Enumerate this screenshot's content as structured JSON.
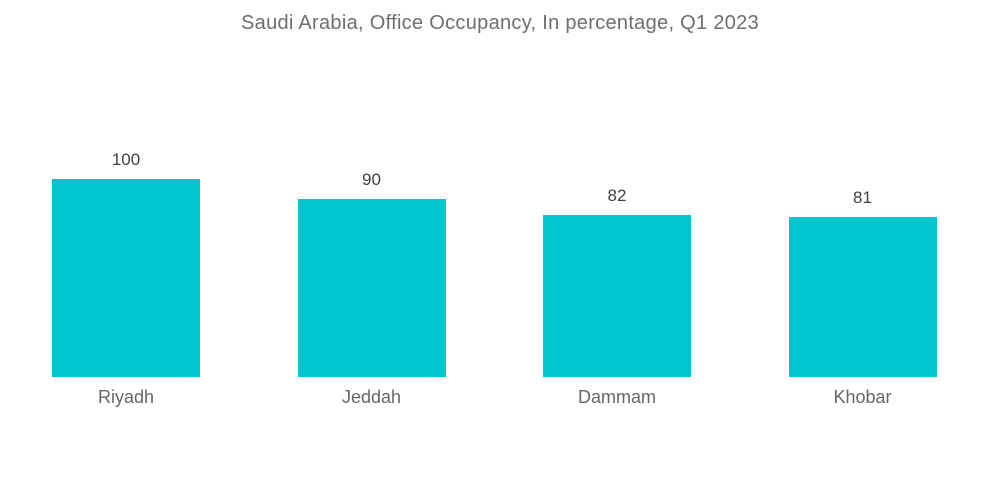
{
  "title": "Saudi Arabia, Office Occupancy, In percentage, Q1 2023",
  "colors": {
    "background": "#FFFFFF",
    "bar": "#00C7CF",
    "title_text": "#6E6E6E",
    "value_text": "#414141",
    "category_text": "#666666"
  },
  "chart_data": {
    "type": "bar",
    "title": "Saudi Arabia, Office Occupancy, In percentage, Q1 2023",
    "categories": [
      "Riyadh",
      "Jeddah",
      "Dammam",
      "Khobar"
    ],
    "values": [
      100,
      90,
      82,
      81
    ],
    "data_labels": [
      "100",
      "90",
      "82",
      "81"
    ],
    "xlabel": "",
    "ylabel": "",
    "ylim": [
      0,
      100
    ],
    "grid": false,
    "axes_visible": false,
    "legend": "none",
    "bar_color": "#00C7CF"
  }
}
